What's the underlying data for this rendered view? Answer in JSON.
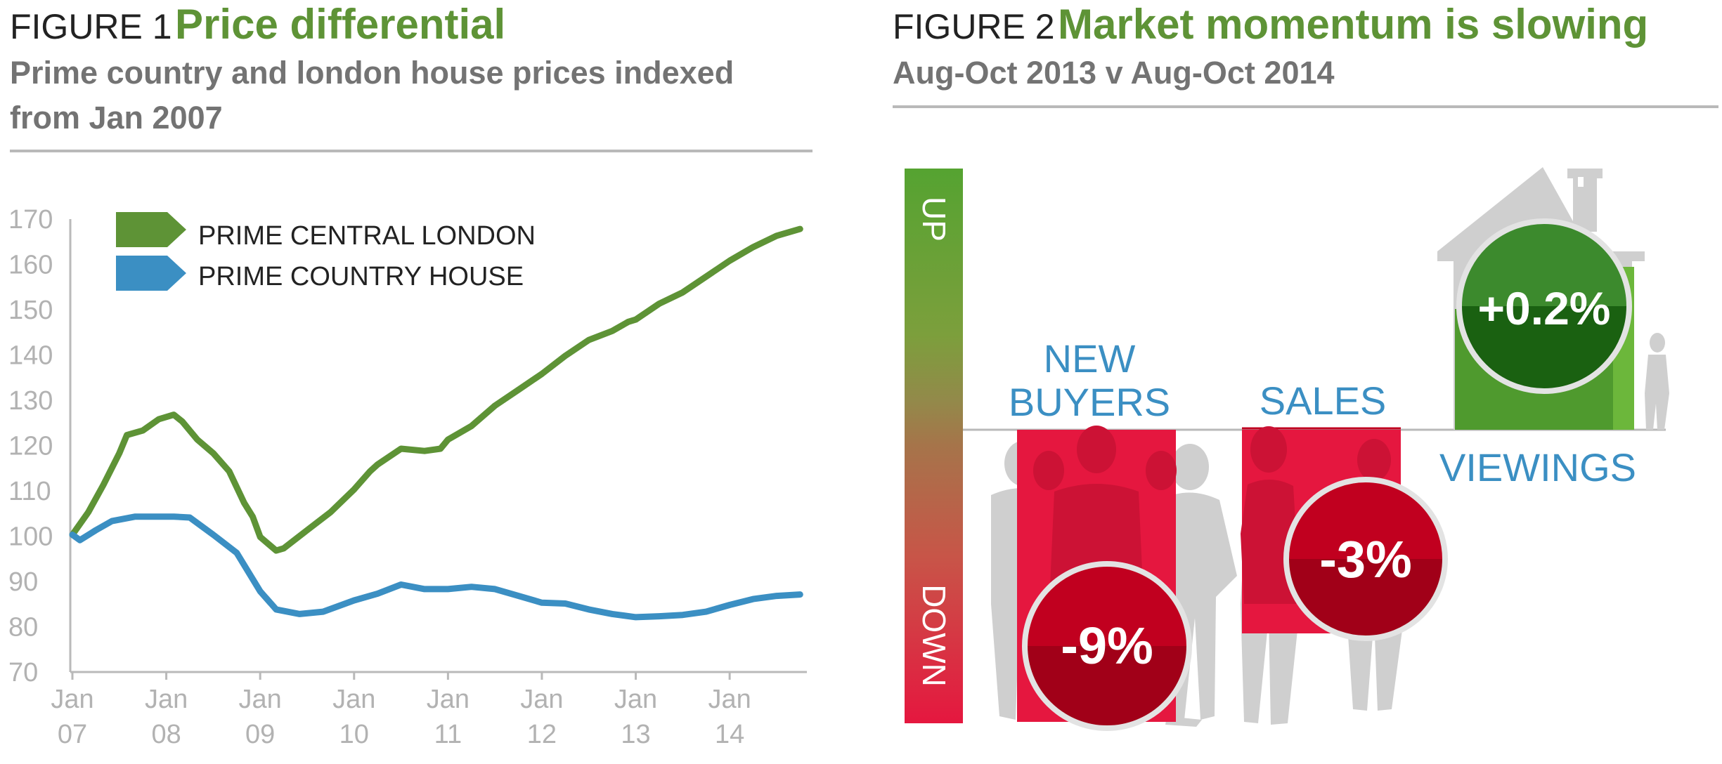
{
  "figure1": {
    "number": "FIGURE 1",
    "title": "Price differential",
    "subtitle_lines": [
      "Prime country and london house prices indexed",
      "from Jan 2007"
    ]
  },
  "figure2": {
    "number": "FIGURE 2",
    "title": "Market momentum is slowing",
    "subtitle": "Aug-Oct 2013 v Aug-Oct 2014",
    "axis_up": "UP",
    "axis_down": "DOWN",
    "labels": {
      "new_buyers": [
        "NEW",
        "BUYERS"
      ],
      "sales": "SALES",
      "viewings": "VIEWINGS"
    }
  },
  "colors": {
    "london": "#5e9336",
    "country": "#3b8fc3",
    "down_red": "#e5173f",
    "up_green": "#4f9a2e"
  },
  "chart_data": [
    {
      "type": "line",
      "title": "Price differential",
      "ylim": [
        70,
        170
      ],
      "yticks": [
        70,
        80,
        90,
        100,
        110,
        120,
        130,
        140,
        150,
        160,
        170
      ],
      "xlim": [
        2007,
        2014.8
      ],
      "xticks": [
        {
          "x": 2007,
          "top": "Jan",
          "bottom": "07"
        },
        {
          "x": 2008,
          "top": "Jan",
          "bottom": "08"
        },
        {
          "x": 2009,
          "top": "Jan",
          "bottom": "09"
        },
        {
          "x": 2010,
          "top": "Jan",
          "bottom": "10"
        },
        {
          "x": 2011,
          "top": "Jan",
          "bottom": "11"
        },
        {
          "x": 2012,
          "top": "Jan",
          "bottom": "12"
        },
        {
          "x": 2013,
          "top": "Jan",
          "bottom": "13"
        },
        {
          "x": 2014,
          "top": "Jan",
          "bottom": "14"
        }
      ],
      "grid": false,
      "legend": "top-left",
      "series": [
        {
          "name": "PRIME CENTRAL LONDON",
          "color": "#5e9336",
          "x": [
            2007,
            2007.17,
            2007.33,
            2007.5,
            2007.58,
            2007.75,
            2007.92,
            2008.08,
            2008.17,
            2008.33,
            2008.5,
            2008.67,
            2008.83,
            2008.92,
            2009,
            2009.17,
            2009.25,
            2009.5,
            2009.75,
            2010,
            2010.17,
            2010.25,
            2010.5,
            2010.75,
            2010.92,
            2011,
            2011.25,
            2011.5,
            2011.75,
            2012,
            2012.25,
            2012.5,
            2012.75,
            2012.92,
            2013,
            2013.25,
            2013.5,
            2013.75,
            2014,
            2014.25,
            2014.5,
            2014.75
          ],
          "y": [
            100,
            105,
            111,
            118,
            122,
            123,
            125.5,
            126.5,
            125,
            121,
            118,
            114,
            107,
            104,
            99.5,
            96.5,
            97,
            101,
            105,
            110,
            114,
            115.5,
            119,
            118.5,
            119,
            121,
            124,
            128.5,
            132,
            135.5,
            139.5,
            143,
            145,
            147,
            147.5,
            151,
            153.5,
            157,
            160.5,
            163.5,
            166,
            167.5
          ]
        },
        {
          "name": "PRIME COUNTRY HOUSE",
          "color": "#3b8fc3",
          "x": [
            2007,
            2007.08,
            2007.25,
            2007.42,
            2007.67,
            2007.92,
            2008.08,
            2008.25,
            2008.5,
            2008.75,
            2009,
            2009.17,
            2009.42,
            2009.67,
            2010,
            2010.25,
            2010.5,
            2010.75,
            2011,
            2011.25,
            2011.5,
            2011.75,
            2012,
            2012.25,
            2012.5,
            2012.75,
            2013,
            2013.25,
            2013.5,
            2013.75,
            2014,
            2014.25,
            2014.5,
            2014.75
          ],
          "y": [
            100,
            98.8,
            101,
            103,
            104,
            104,
            104,
            103.8,
            100,
            96,
            87.5,
            83.5,
            82.5,
            83,
            85.5,
            87,
            89,
            88,
            88,
            88.5,
            88,
            86.5,
            85,
            84.8,
            83.5,
            82.5,
            81.8,
            82,
            82.3,
            83,
            84.5,
            85.8,
            86.5,
            86.8
          ]
        }
      ]
    },
    {
      "type": "bar",
      "title": "Market momentum is slowing",
      "subtitle": "Aug-Oct 2013 v Aug-Oct 2014",
      "categories": [
        "NEW BUYERS",
        "SALES",
        "VIEWINGS"
      ],
      "values": [
        -9,
        -3,
        0.2
      ],
      "labels": [
        "-9%",
        "-3%",
        "+0.2%"
      ]
    }
  ]
}
